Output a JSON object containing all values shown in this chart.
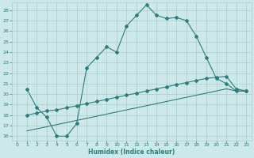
{
  "xlabel": "Humidex (Indice chaleur)",
  "bg_color": "#cce8e8",
  "grid_color": "#aacccc",
  "line_color": "#2e7d7d",
  "xlim": [
    -0.5,
    23.5
  ],
  "ylim": [
    15.6,
    28.7
  ],
  "xticks": [
    0,
    1,
    2,
    3,
    4,
    5,
    6,
    7,
    8,
    9,
    10,
    11,
    12,
    13,
    14,
    15,
    16,
    17,
    18,
    19,
    20,
    21,
    22,
    23
  ],
  "yticks": [
    16,
    17,
    18,
    19,
    20,
    21,
    22,
    23,
    24,
    25,
    26,
    27,
    28
  ],
  "line1_x": [
    1,
    2,
    3,
    4,
    5,
    6,
    7,
    8,
    9,
    10,
    11,
    12,
    13,
    14,
    15,
    16,
    17,
    18,
    19,
    20,
    21,
    22,
    23
  ],
  "line1_y": [
    20.5,
    18.7,
    17.8,
    16.0,
    16.0,
    17.2,
    22.5,
    23.5,
    24.5,
    24.0,
    26.5,
    27.5,
    28.5,
    27.5,
    27.2,
    27.3,
    27.0,
    25.5,
    23.5,
    21.5,
    21.0,
    20.3,
    20.3
  ],
  "line2_x": [
    1,
    2,
    3,
    4,
    5,
    6,
    7,
    8,
    9,
    10,
    11,
    12,
    13,
    14,
    15,
    16,
    17,
    18,
    19,
    20,
    21,
    22,
    23
  ],
  "line2_y": [
    18.0,
    18.2,
    18.4,
    18.5,
    18.7,
    18.9,
    19.1,
    19.3,
    19.5,
    19.7,
    19.9,
    20.1,
    20.3,
    20.5,
    20.7,
    20.9,
    21.1,
    21.3,
    21.5,
    21.6,
    21.7,
    20.5,
    20.3
  ],
  "line3_x": [
    1,
    2,
    3,
    4,
    5,
    6,
    7,
    8,
    9,
    10,
    11,
    12,
    13,
    14,
    15,
    16,
    17,
    18,
    19,
    20,
    21,
    22,
    23
  ],
  "line3_y": [
    16.5,
    16.7,
    16.9,
    17.1,
    17.3,
    17.5,
    17.7,
    17.9,
    18.1,
    18.3,
    18.5,
    18.7,
    18.9,
    19.1,
    19.3,
    19.5,
    19.7,
    19.9,
    20.1,
    20.3,
    20.5,
    20.3,
    20.3
  ]
}
